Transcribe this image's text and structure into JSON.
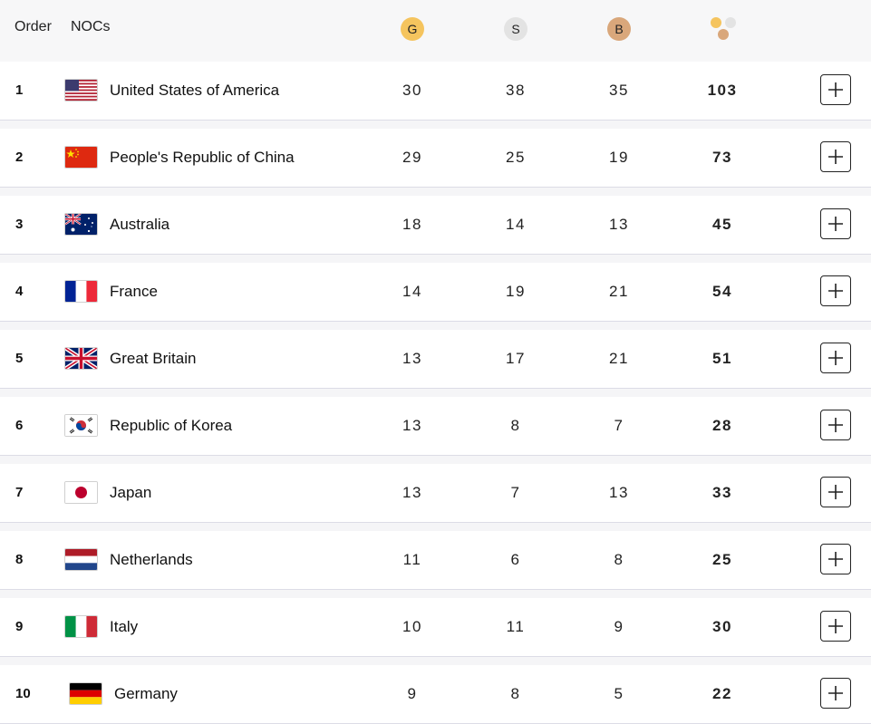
{
  "header": {
    "order_label": "Order",
    "noc_label": "NOCs",
    "gold_label": "G",
    "silver_label": "S",
    "bronze_label": "B",
    "total_icon": "medals-icon"
  },
  "colors": {
    "gold": "#f5c45e",
    "silver": "#e3e3e3",
    "bronze": "#d9a77b",
    "divider": "#dcdce6"
  },
  "rows": [
    {
      "order": "1",
      "noc": "United States of America",
      "flag": "usa",
      "gold": "30",
      "silver": "38",
      "bronze": "35",
      "total": "103"
    },
    {
      "order": "2",
      "noc": "People's Republic of China",
      "flag": "china",
      "gold": "29",
      "silver": "25",
      "bronze": "19",
      "total": "73"
    },
    {
      "order": "3",
      "noc": "Australia",
      "flag": "australia",
      "gold": "18",
      "silver": "14",
      "bronze": "13",
      "total": "45"
    },
    {
      "order": "4",
      "noc": "France",
      "flag": "france",
      "gold": "14",
      "silver": "19",
      "bronze": "21",
      "total": "54"
    },
    {
      "order": "5",
      "noc": "Great Britain",
      "flag": "gb",
      "gold": "13",
      "silver": "17",
      "bronze": "21",
      "total": "51"
    },
    {
      "order": "6",
      "noc": "Republic of Korea",
      "flag": "korea",
      "gold": "13",
      "silver": "8",
      "bronze": "7",
      "total": "28"
    },
    {
      "order": "7",
      "noc": "Japan",
      "flag": "japan",
      "gold": "13",
      "silver": "7",
      "bronze": "13",
      "total": "33"
    },
    {
      "order": "8",
      "noc": "Netherlands",
      "flag": "netherlands",
      "gold": "11",
      "silver": "6",
      "bronze": "8",
      "total": "25"
    },
    {
      "order": "9",
      "noc": "Italy",
      "flag": "italy",
      "gold": "10",
      "silver": "11",
      "bronze": "9",
      "total": "30"
    },
    {
      "order": "10",
      "noc": "Germany",
      "flag": "germany",
      "gold": "9",
      "silver": "8",
      "bronze": "5",
      "total": "22"
    }
  ]
}
